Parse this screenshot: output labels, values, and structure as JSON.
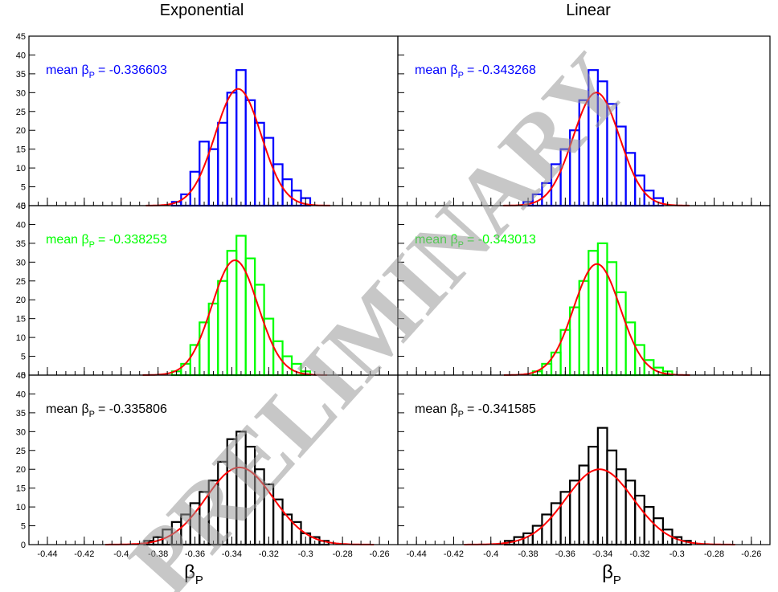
{
  "columns": [
    "Exponential",
    "Linear"
  ],
  "watermark": "PRELIMINARY",
  "xaxis": {
    "label_main": "β",
    "label_sub": "P",
    "ticks": [
      -0.44,
      -0.42,
      -0.4,
      -0.38,
      -0.36,
      -0.34,
      -0.32,
      -0.3,
      -0.28,
      -0.26
    ],
    "tick_labels": [
      "-0.44",
      "-0.42",
      "-0.4",
      "-0.38",
      "-0.36",
      "-0.34",
      "-0.32",
      "-0.3",
      "-0.28",
      "-0.26"
    ]
  },
  "panels": [
    {
      "id": "exp-blue",
      "label_prefix": "mean β",
      "label_sub": "P",
      "label_value": "= -0.336603",
      "color": "#0000ff"
    },
    {
      "id": "lin-blue",
      "label_prefix": "mean β",
      "label_sub": "P",
      "label_value": "= -0.343268",
      "color": "#0000ff"
    },
    {
      "id": "exp-green",
      "label_prefix": "mean β",
      "label_sub": "P",
      "label_value": "= -0.338253",
      "color": "#00ff00"
    },
    {
      "id": "lin-green",
      "label_prefix": "mean β",
      "label_sub": "P",
      "label_value": "= -0.343013",
      "color": "#00ff00"
    },
    {
      "id": "exp-black",
      "label_prefix": "mean β",
      "label_sub": "P",
      "label_value": "= -0.335806",
      "color": "#000000"
    },
    {
      "id": "lin-black",
      "label_prefix": "mean β",
      "label_sub": "P",
      "label_value": "= -0.341585",
      "color": "#000000"
    }
  ],
  "chart_data": [
    {
      "type": "histogram",
      "panel": "Exponential, top",
      "color": "#0000ff",
      "fit_color": "#ff0000",
      "xlim": [
        -0.45,
        -0.25
      ],
      "ylim": [
        0,
        45
      ],
      "yticks": [
        0,
        5,
        10,
        15,
        20,
        25,
        30,
        35,
        40,
        45
      ],
      "x": [
        -0.37,
        -0.365,
        -0.36,
        -0.355,
        -0.35,
        -0.345,
        -0.34,
        -0.335,
        -0.33,
        -0.325,
        -0.32,
        -0.315,
        -0.31,
        -0.305,
        -0.3
      ],
      "values": [
        1,
        3,
        9,
        17,
        15,
        22,
        30,
        36,
        28,
        22,
        18,
        11,
        7,
        4,
        2
      ],
      "fit": {
        "mean": -0.3366,
        "sigma": 0.0125,
        "amplitude": 31
      }
    },
    {
      "type": "histogram",
      "panel": "Linear, top",
      "color": "#0000ff",
      "fit_color": "#ff0000",
      "xlim": [
        -0.45,
        -0.25
      ],
      "ylim": [
        0,
        45
      ],
      "yticks": [
        0,
        5,
        10,
        15,
        20,
        25,
        30,
        35,
        40,
        45
      ],
      "x": [
        -0.38,
        -0.375,
        -0.37,
        -0.365,
        -0.36,
        -0.355,
        -0.35,
        -0.345,
        -0.34,
        -0.335,
        -0.33,
        -0.325,
        -0.32,
        -0.315,
        -0.31
      ],
      "values": [
        1,
        3,
        6,
        11,
        15,
        20,
        28,
        36,
        33,
        27,
        21,
        14,
        8,
        4,
        2
      ],
      "fit": {
        "mean": -0.3433,
        "sigma": 0.0125,
        "amplitude": 30
      }
    },
    {
      "type": "histogram",
      "panel": "Exponential, middle",
      "color": "#00ff00",
      "fit_color": "#ff0000",
      "xlim": [
        -0.45,
        -0.25
      ],
      "ylim": [
        0,
        45
      ],
      "yticks": [
        0,
        5,
        10,
        15,
        20,
        25,
        30,
        35,
        40,
        45
      ],
      "x": [
        -0.37,
        -0.365,
        -0.36,
        -0.355,
        -0.35,
        -0.345,
        -0.34,
        -0.335,
        -0.33,
        -0.325,
        -0.32,
        -0.315,
        -0.31,
        -0.305,
        -0.3
      ],
      "values": [
        1,
        3,
        8,
        14,
        19,
        25,
        33,
        37,
        31,
        24,
        15,
        9,
        5,
        3,
        1
      ],
      "fit": {
        "mean": -0.3383,
        "sigma": 0.0125,
        "amplitude": 30.5
      }
    },
    {
      "type": "histogram",
      "panel": "Linear, middle",
      "color": "#00ff00",
      "fit_color": "#ff0000",
      "xlim": [
        -0.45,
        -0.25
      ],
      "ylim": [
        0,
        45
      ],
      "yticks": [
        0,
        5,
        10,
        15,
        20,
        25,
        30,
        35,
        40,
        45
      ],
      "x": [
        -0.375,
        -0.37,
        -0.365,
        -0.36,
        -0.355,
        -0.35,
        -0.345,
        -0.34,
        -0.335,
        -0.33,
        -0.325,
        -0.32,
        -0.315,
        -0.31,
        -0.305
      ],
      "values": [
        1,
        3,
        6,
        12,
        18,
        25,
        33,
        35,
        30,
        22,
        14,
        8,
        4,
        2,
        1
      ],
      "fit": {
        "mean": -0.343,
        "sigma": 0.0125,
        "amplitude": 29.5
      }
    },
    {
      "type": "histogram",
      "panel": "Exponential, bottom",
      "color": "#000000",
      "fit_color": "#ff0000",
      "xlim": [
        -0.45,
        -0.25
      ],
      "ylim": [
        0,
        45
      ],
      "yticks": [
        0,
        5,
        10,
        15,
        20,
        25,
        30,
        35,
        40,
        45
      ],
      "x": [
        -0.385,
        -0.38,
        -0.375,
        -0.37,
        -0.365,
        -0.36,
        -0.355,
        -0.35,
        -0.345,
        -0.34,
        -0.335,
        -0.33,
        -0.325,
        -0.32,
        -0.315,
        -0.31,
        -0.305,
        -0.3,
        -0.295,
        -0.29
      ],
      "values": [
        1,
        2,
        4,
        6,
        8,
        11,
        14,
        17,
        22,
        28,
        30,
        26,
        20,
        16,
        12,
        8,
        6,
        3,
        2,
        1
      ],
      "fit": {
        "mean": -0.3358,
        "sigma": 0.0182,
        "amplitude": 20.5
      }
    },
    {
      "type": "histogram",
      "panel": "Linear, bottom",
      "color": "#000000",
      "fit_color": "#ff0000",
      "xlim": [
        -0.45,
        -0.25
      ],
      "ylim": [
        0,
        45
      ],
      "yticks": [
        0,
        5,
        10,
        15,
        20,
        25,
        30,
        35,
        40,
        45
      ],
      "x": [
        -0.39,
        -0.385,
        -0.38,
        -0.375,
        -0.37,
        -0.365,
        -0.36,
        -0.355,
        -0.35,
        -0.345,
        -0.34,
        -0.335,
        -0.33,
        -0.325,
        -0.32,
        -0.315,
        -0.31,
        -0.305,
        -0.3,
        -0.295
      ],
      "values": [
        1,
        2,
        3,
        5,
        8,
        11,
        14,
        17,
        21,
        26,
        31,
        25,
        20,
        17,
        13,
        10,
        7,
        4,
        2,
        1
      ],
      "fit": {
        "mean": -0.3416,
        "sigma": 0.0182,
        "amplitude": 20
      }
    }
  ]
}
